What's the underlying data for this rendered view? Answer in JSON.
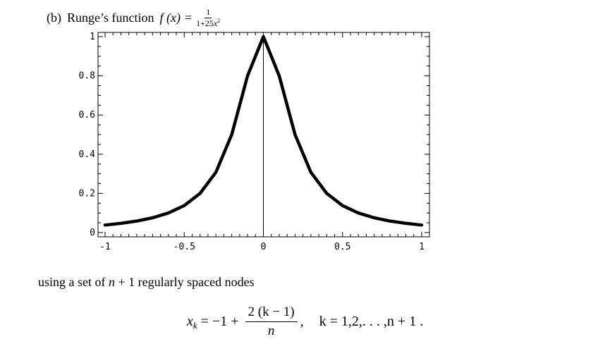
{
  "heading": {
    "label": "(b)",
    "title": "Runge’s function",
    "lhs": "f (x)",
    "eq": "=",
    "frac_num": "1",
    "frac_den_prefix": "1+25",
    "frac_den_var": "x",
    "frac_den_exp": "2"
  },
  "chart_data": {
    "type": "line",
    "title": "",
    "xlabel": "",
    "ylabel": "",
    "xlim": [
      -1,
      1
    ],
    "ylim": [
      0,
      1
    ],
    "x_ticks": [
      "-1",
      "-0.5",
      "0",
      "0.5",
      "1"
    ],
    "y_ticks": [
      "0",
      "0.2",
      "0.4",
      "0.6",
      "0.8",
      "1"
    ],
    "grid": false,
    "series": [
      {
        "x": [
          -1,
          -0.9,
          -0.8,
          -0.7,
          -0.6,
          -0.5,
          -0.4,
          -0.3,
          -0.2,
          -0.1,
          0,
          0.1,
          0.2,
          0.3,
          0.4,
          0.5,
          0.6,
          0.7,
          0.8,
          0.9,
          1
        ],
        "y": [
          0.0385,
          0.0471,
          0.0588,
          0.0755,
          0.1,
          0.1379,
          0.2,
          0.3077,
          0.5,
          0.8,
          1,
          0.8,
          0.5,
          0.3077,
          0.2,
          0.1379,
          0.1,
          0.0755,
          0.0588,
          0.0471,
          0.0385
        ]
      }
    ],
    "line_color": "#000000",
    "vertical_line_at_x": 0
  },
  "caption": {
    "before": "using a set of ",
    "n": "n",
    "after": " + 1 regularly spaced nodes"
  },
  "formula": {
    "x": "x",
    "k_sub": "k",
    "eq_part": " = −1 + ",
    "num": "2 (k − 1)",
    "den": "n",
    "comma": ",",
    "tail": "k = 1,2,. . . ,n + 1 ."
  }
}
